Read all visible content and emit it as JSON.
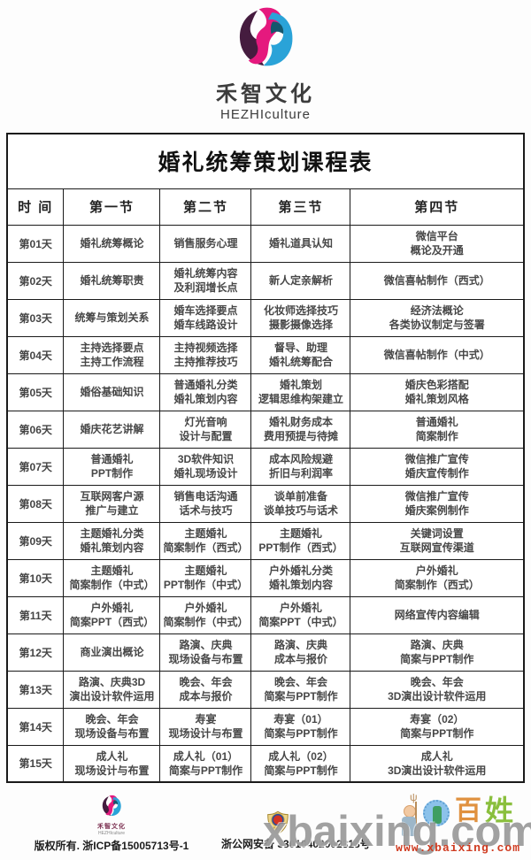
{
  "brand": {
    "name_cn": "禾智文化",
    "name_en": "HEZHIculture"
  },
  "table": {
    "title": "婚礼统筹策划课程表",
    "columns": [
      "时  间",
      "第一节",
      "第二节",
      "第三节",
      "第四节"
    ],
    "rows": [
      {
        "day": "第01天",
        "cells": [
          "婚礼统筹概论",
          "销售服务心理",
          "婚礼道具认知",
          "微信平台\n概论及开通"
        ]
      },
      {
        "day": "第02天",
        "cells": [
          "婚礼统筹职责",
          "婚礼统筹内容\n及利润增长点",
          "新人定亲解析",
          "微信喜帖制作（西式）"
        ]
      },
      {
        "day": "第03天",
        "cells": [
          "统筹与策划关系",
          "婚车选择要点\n婚车线路设计",
          "化妆师选择技巧\n摄影摄像选择",
          "经济法概论\n各类协议制定与签署"
        ]
      },
      {
        "day": "第04天",
        "cells": [
          "主持选择要点\n主持工作流程",
          "主持视频选择\n主持推荐技巧",
          "督导、助理\n婚礼统筹配合",
          "微信喜帖制作（中式）"
        ]
      },
      {
        "day": "第05天",
        "cells": [
          "婚俗基础知识",
          "普通婚礼分类\n婚礼策划内容",
          "婚礼策划\n逻辑思维构架建立",
          "婚庆色彩搭配\n婚礼策划风格"
        ]
      },
      {
        "day": "第06天",
        "cells": [
          "婚庆花艺讲解",
          "灯光音响\n设计与配置",
          "婚礼财务成本\n费用预提与待摊",
          "普通婚礼\n简案制作"
        ]
      },
      {
        "day": "第07天",
        "cells": [
          "普通婚礼\nPPT制作",
          "3D软件知识\n婚礼现场设计",
          "成本风险规避\n折旧与利润率",
          "微信推广宣传\n婚庆宣传制作"
        ]
      },
      {
        "day": "第08天",
        "cells": [
          "互联网客户源\n推广与建立",
          "销售电话沟通\n话术与技巧",
          "谈单前准备\n谈单技巧与话术",
          "微信推广宣传\n婚庆案例制作"
        ]
      },
      {
        "day": "第09天",
        "cells": [
          "主题婚礼分类\n婚礼策划内容",
          "主题婚礼\n简案制作（西式）",
          "主题婚礼\nPPT制作（西式）",
          "关键词设置\n互联网宣传渠道"
        ]
      },
      {
        "day": "第10天",
        "cells": [
          "主题婚礼\n简案制作（中式）",
          "主题婚礼\nPPT制作（中式）",
          "户外婚礼分类\n婚礼策划内容",
          "户外婚礼\n简案制作（西式）"
        ]
      },
      {
        "day": "第11天",
        "cells": [
          "户外婚礼\n简案PPT（西式）",
          "户外婚礼\n简案制作（中式）",
          "户外婚礼\n简案PPT（中式）",
          "网络宣传内容编辑"
        ]
      },
      {
        "day": "第12天",
        "cells": [
          "商业演出概论",
          "路演、庆典\n现场设备与布置",
          "路演、庆典\n成本与报价",
          "路演、庆典\n简案与PPT制作"
        ]
      },
      {
        "day": "第13天",
        "cells": [
          "路演、庆典3D\n演出设计软件运用",
          "晚会、年会\n成本与报价",
          "晚会、年会\n简案与PPT制作",
          "晚会、年会\n3D演出设计软件运用"
        ]
      },
      {
        "day": "第14天",
        "cells": [
          "晚会、年会\n现场设备与布置",
          "寿宴\n现场设计与布置",
          "寿宴（01）\n简案与PPT制作",
          "寿宴（02）\n简案与PPT制作"
        ]
      },
      {
        "day": "第15天",
        "cells": [
          "成人礼\n现场设计与布置",
          "成人礼（01）\n简案与PPT制作",
          "成人礼（02）\n简案与PPT制作",
          "成人礼\n3D演出设计软件运用"
        ]
      }
    ]
  },
  "footer": {
    "brand_name_cn": "禾智文化",
    "brand_name_en": "HEZHIculture",
    "copyright": "版权所有. 浙ICP备15005713号-1",
    "beian": "浙公网安备 33010402002313号",
    "mascot_char_1": "百",
    "mascot_char_2": "姓",
    "watermark": "xbaixing.com",
    "watermark_url": "www.xbaixing.com"
  },
  "colors": {
    "logo_magenta": "#e5197e",
    "logo_purple": "#451c3f",
    "logo_blue": "#2aa3d8",
    "logo_teal": "#14576d",
    "watermark_red": "#cf3a1f",
    "mascot_orange": "#e0913f",
    "mascot_green": "#8abf3d"
  }
}
